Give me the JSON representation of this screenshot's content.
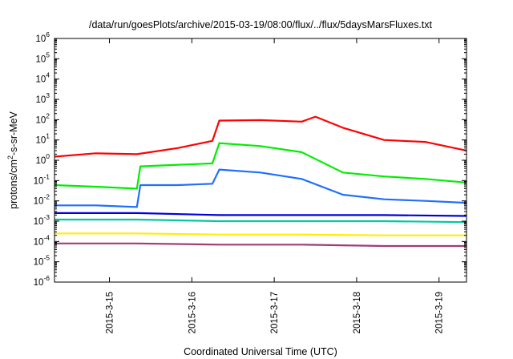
{
  "chart_data": {
    "type": "line",
    "title": "/data/run/goesPlots/archive/2015-03-19/08:00/flux/../flux/5daysMarsFluxes.txt",
    "xlabel": "Coordinated Universal Time (UTC)",
    "ylabel": "protons/cm2-s-sr-MeV",
    "y_scale": "log",
    "ylim": [
      1e-06,
      1000000.0
    ],
    "xlim": [
      "2015-03-14 08:00",
      "2015-03-19 08:00"
    ],
    "x_ticks": [
      "2015-3-15",
      "2015-3-16",
      "2015-3-17",
      "2015-3-18",
      "2015-3-19"
    ],
    "y_ticks": [
      {
        "base": "10",
        "exp": "-6"
      },
      {
        "base": "10",
        "exp": "-5"
      },
      {
        "base": "10",
        "exp": "-4"
      },
      {
        "base": "10",
        "exp": "-3"
      },
      {
        "base": "10",
        "exp": "-2"
      },
      {
        "base": "10",
        "exp": "-1"
      },
      {
        "base": "10",
        "exp": "0"
      },
      {
        "base": "10",
        "exp": "1"
      },
      {
        "base": "10",
        "exp": "2"
      },
      {
        "base": "10",
        "exp": "3"
      },
      {
        "base": "10",
        "exp": "4"
      },
      {
        "base": "10",
        "exp": "5"
      },
      {
        "base": "10",
        "exp": "6"
      }
    ],
    "grid": false,
    "legend": "none",
    "series": [
      {
        "color": "#ff0000",
        "x": [
          "2015-03-14 08:00",
          "2015-03-14 20:00",
          "2015-03-15 08:00",
          "2015-03-15 20:00",
          "2015-03-16 06:00",
          "2015-03-16 08:00",
          "2015-03-16 20:00",
          "2015-03-17 08:00",
          "2015-03-17 12:00",
          "2015-03-17 20:00",
          "2015-03-18 08:00",
          "2015-03-18 20:00",
          "2015-03-19 08:00"
        ],
        "y": [
          1.5,
          2.2,
          2.0,
          4.0,
          9.0,
          90,
          95,
          80,
          140,
          40,
          10,
          8,
          3
        ]
      },
      {
        "color": "#00ee00",
        "x": [
          "2015-03-14 08:00",
          "2015-03-14 20:00",
          "2015-03-15 08:00",
          "2015-03-15 09:00",
          "2015-03-15 20:00",
          "2015-03-16 06:00",
          "2015-03-16 08:00",
          "2015-03-16 20:00",
          "2015-03-17 08:00",
          "2015-03-17 20:00",
          "2015-03-18 08:00",
          "2015-03-18 20:00",
          "2015-03-19 08:00"
        ],
        "y": [
          0.06,
          0.05,
          0.04,
          0.5,
          0.6,
          0.7,
          7,
          5,
          2.5,
          0.25,
          0.16,
          0.12,
          0.08
        ]
      },
      {
        "color": "#1f6fff",
        "x": [
          "2015-03-14 08:00",
          "2015-03-14 20:00",
          "2015-03-15 08:00",
          "2015-03-15 09:00",
          "2015-03-15 20:00",
          "2015-03-16 06:00",
          "2015-03-16 08:00",
          "2015-03-16 20:00",
          "2015-03-17 08:00",
          "2015-03-17 20:00",
          "2015-03-18 08:00",
          "2015-03-18 20:00",
          "2015-03-19 08:00"
        ],
        "y": [
          0.006,
          0.006,
          0.005,
          0.06,
          0.06,
          0.07,
          0.35,
          0.25,
          0.12,
          0.02,
          0.012,
          0.01,
          0.008
        ]
      },
      {
        "color": "#0000dd",
        "x": [
          "2015-03-14 08:00",
          "2015-03-15 08:00",
          "2015-03-16 08:00",
          "2015-03-17 08:00",
          "2015-03-18 08:00",
          "2015-03-19 08:00"
        ],
        "y": [
          0.0025,
          0.0025,
          0.002,
          0.002,
          0.002,
          0.0018
        ]
      },
      {
        "color": "#00c8a0",
        "x": [
          "2015-03-14 08:00",
          "2015-03-15 08:00",
          "2015-03-16 08:00",
          "2015-03-17 08:00",
          "2015-03-18 08:00",
          "2015-03-19 08:00"
        ],
        "y": [
          0.0012,
          0.0012,
          0.001,
          0.001,
          0.001,
          0.0009
        ]
      },
      {
        "color": "#ffee00",
        "x": [
          "2015-03-14 08:00",
          "2015-03-15 08:00",
          "2015-03-16 08:00",
          "2015-03-17 08:00",
          "2015-03-18 08:00",
          "2015-03-19 08:00"
        ],
        "y": [
          0.00025,
          0.00025,
          0.00022,
          0.00022,
          0.0002,
          0.0002
        ]
      },
      {
        "color": "#a03c78",
        "x": [
          "2015-03-14 08:00",
          "2015-03-15 08:00",
          "2015-03-16 08:00",
          "2015-03-17 08:00",
          "2015-03-18 08:00",
          "2015-03-19 08:00"
        ],
        "y": [
          8e-05,
          8e-05,
          7e-05,
          7e-05,
          6e-05,
          6e-05
        ]
      }
    ]
  }
}
